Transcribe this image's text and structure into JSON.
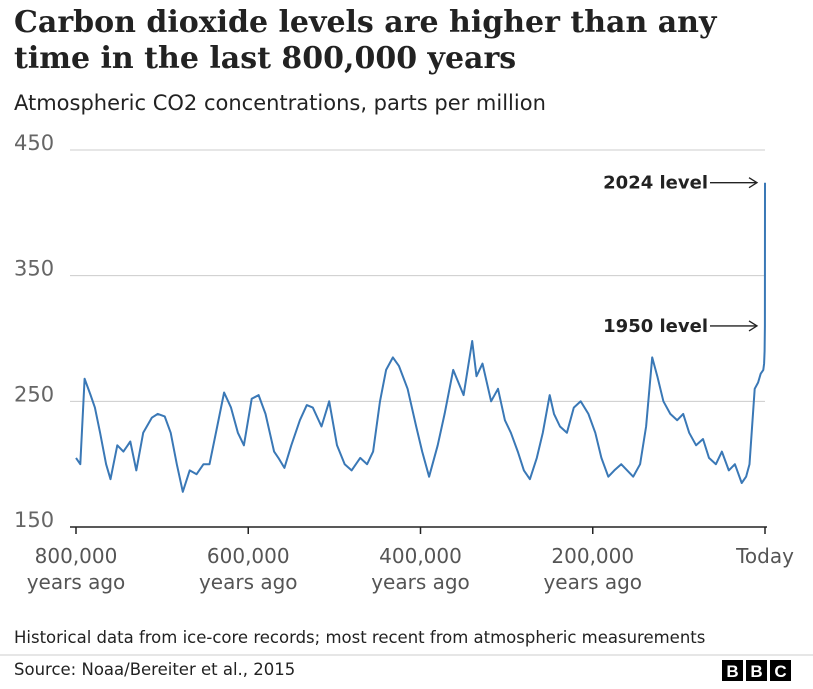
{
  "chart_data": {
    "type": "line",
    "title": "Carbon dioxide levels are higher than any\ntime in the last 800,000 years",
    "subtitle": "Atmospheric CO2 concentrations, parts per million",
    "color": "#3a78b6",
    "x": [
      800000,
      795000,
      790000,
      783000,
      778000,
      772000,
      765000,
      760000,
      752000,
      745000,
      737000,
      730000,
      722000,
      712000,
      705000,
      697000,
      690000,
      683000,
      676000,
      668000,
      660000,
      652000,
      645000,
      636000,
      628000,
      620000,
      612000,
      605000,
      596000,
      588000,
      580000,
      570000,
      565000,
      558000,
      550000,
      540000,
      532000,
      525000,
      515000,
      506000,
      497000,
      488000,
      480000,
      470000,
      462000,
      455000,
      447000,
      440000,
      432000,
      425000,
      415000,
      405000,
      398000,
      390000,
      380000,
      372000,
      362000,
      350000,
      340000,
      335000,
      328000,
      318000,
      310000,
      302000,
      295000,
      287000,
      280000,
      273000,
      265000,
      258000,
      250000,
      245000,
      238000,
      230000,
      222000,
      214000,
      205000,
      197000,
      190000,
      182000,
      175000,
      167000,
      160000,
      153000,
      145000,
      138000,
      131000,
      125000,
      118000,
      110000,
      102000,
      95000,
      88000,
      80000,
      72000,
      65000,
      57000,
      50000,
      42000,
      35000,
      27000,
      22000,
      18000,
      15000,
      12000,
      8000,
      5000,
      2000,
      1000,
      500,
      74,
      0
    ],
    "values": [
      205,
      200,
      268,
      255,
      245,
      225,
      200,
      188,
      215,
      210,
      218,
      195,
      225,
      237,
      240,
      238,
      225,
      200,
      178,
      195,
      192,
      200,
      200,
      230,
      257,
      245,
      225,
      215,
      252,
      255,
      240,
      210,
      205,
      197,
      215,
      235,
      247,
      245,
      230,
      250,
      215,
      200,
      195,
      205,
      200,
      210,
      250,
      275,
      285,
      278,
      260,
      230,
      210,
      190,
      215,
      240,
      275,
      255,
      298,
      270,
      280,
      250,
      260,
      235,
      225,
      210,
      195,
      188,
      205,
      225,
      255,
      240,
      230,
      225,
      245,
      250,
      240,
      225,
      205,
      190,
      195,
      200,
      195,
      190,
      200,
      230,
      285,
      270,
      250,
      240,
      235,
      240,
      225,
      215,
      220,
      205,
      200,
      210,
      195,
      200,
      185,
      190,
      200,
      230,
      260,
      265,
      272,
      275,
      280,
      290,
      310,
      424
    ],
    "xlim": [
      800000,
      0
    ],
    "xticks": [
      {
        "value": 800000,
        "label": "800,000\nyears ago"
      },
      {
        "value": 600000,
        "label": "600,000\nyears ago"
      },
      {
        "value": 400000,
        "label": "400,000\nyears ago"
      },
      {
        "value": 200000,
        "label": "200,000\nyears ago"
      },
      {
        "value": 0,
        "label": "Today"
      }
    ],
    "ylim": [
      150,
      450
    ],
    "yticks": [
      150,
      250,
      350,
      450
    ],
    "grid": true,
    "annotations": [
      {
        "text": "2024 level",
        "value": 424
      },
      {
        "text": "1950 level",
        "value": 310
      }
    ],
    "note": "Historical data from ice-core records; most recent from atmospheric measurements",
    "source": "Source: Noaa/Bereiter et al., 2015",
    "logo": "BBC"
  }
}
